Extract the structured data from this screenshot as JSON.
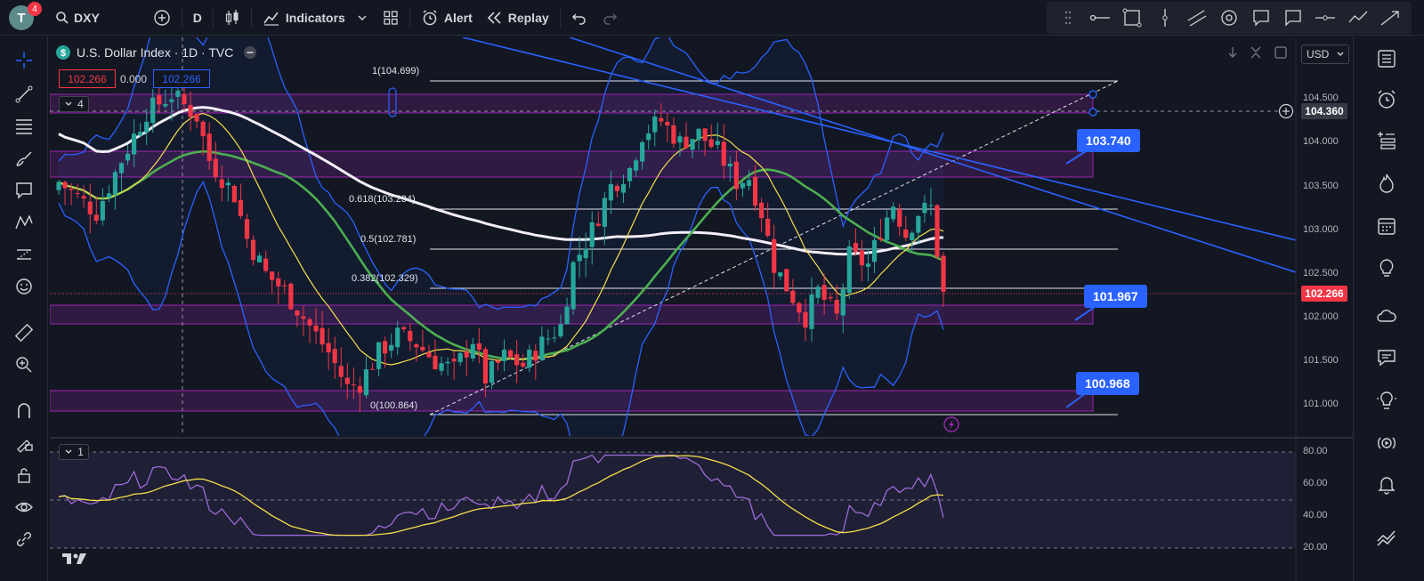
{
  "header": {
    "avatar_letter": "T",
    "notification_count": "4",
    "symbol": "DXY",
    "interval": "D",
    "indicators_label": "Indicators",
    "alert_label": "Alert",
    "replay_label": "Replay"
  },
  "legend": {
    "title": "U.S. Dollar Index · 1D · TVC",
    "bid": "102.266",
    "spread": "0.000",
    "ask": "102.266",
    "indicators_count": "4",
    "pane_count": "1"
  },
  "axis": {
    "currency": "USD",
    "price_ticks": [
      "104.500",
      "104.000",
      "103.500",
      "103.000",
      "102.500",
      "102.000",
      "101.500",
      "101.000"
    ],
    "rsi_ticks": [
      "80.00",
      "60.00",
      "40.00",
      "20.00"
    ],
    "crosshair_price": "104.360",
    "last_price": "102.266"
  },
  "fib": {
    "level_1": "1(104.699)",
    "level_618": "0.618(103.234)",
    "level_5": "0.5(102.781)",
    "level_382": "0.382(102.329)",
    "level_0": "0(100.864)"
  },
  "callouts": {
    "upper": "103.740",
    "middle": "101.967",
    "lower": "100.968"
  },
  "logo": "TV",
  "colors": {
    "up": "#26a69a",
    "down": "#f23645",
    "accent": "#2962ff",
    "zone": "#9c27b0",
    "ma_long": "#ffffff",
    "ma_mid": "#4caf50",
    "ma_short": "#f5e04a",
    "bands": "#2962ff",
    "rsi": "#9c6bd8"
  }
}
